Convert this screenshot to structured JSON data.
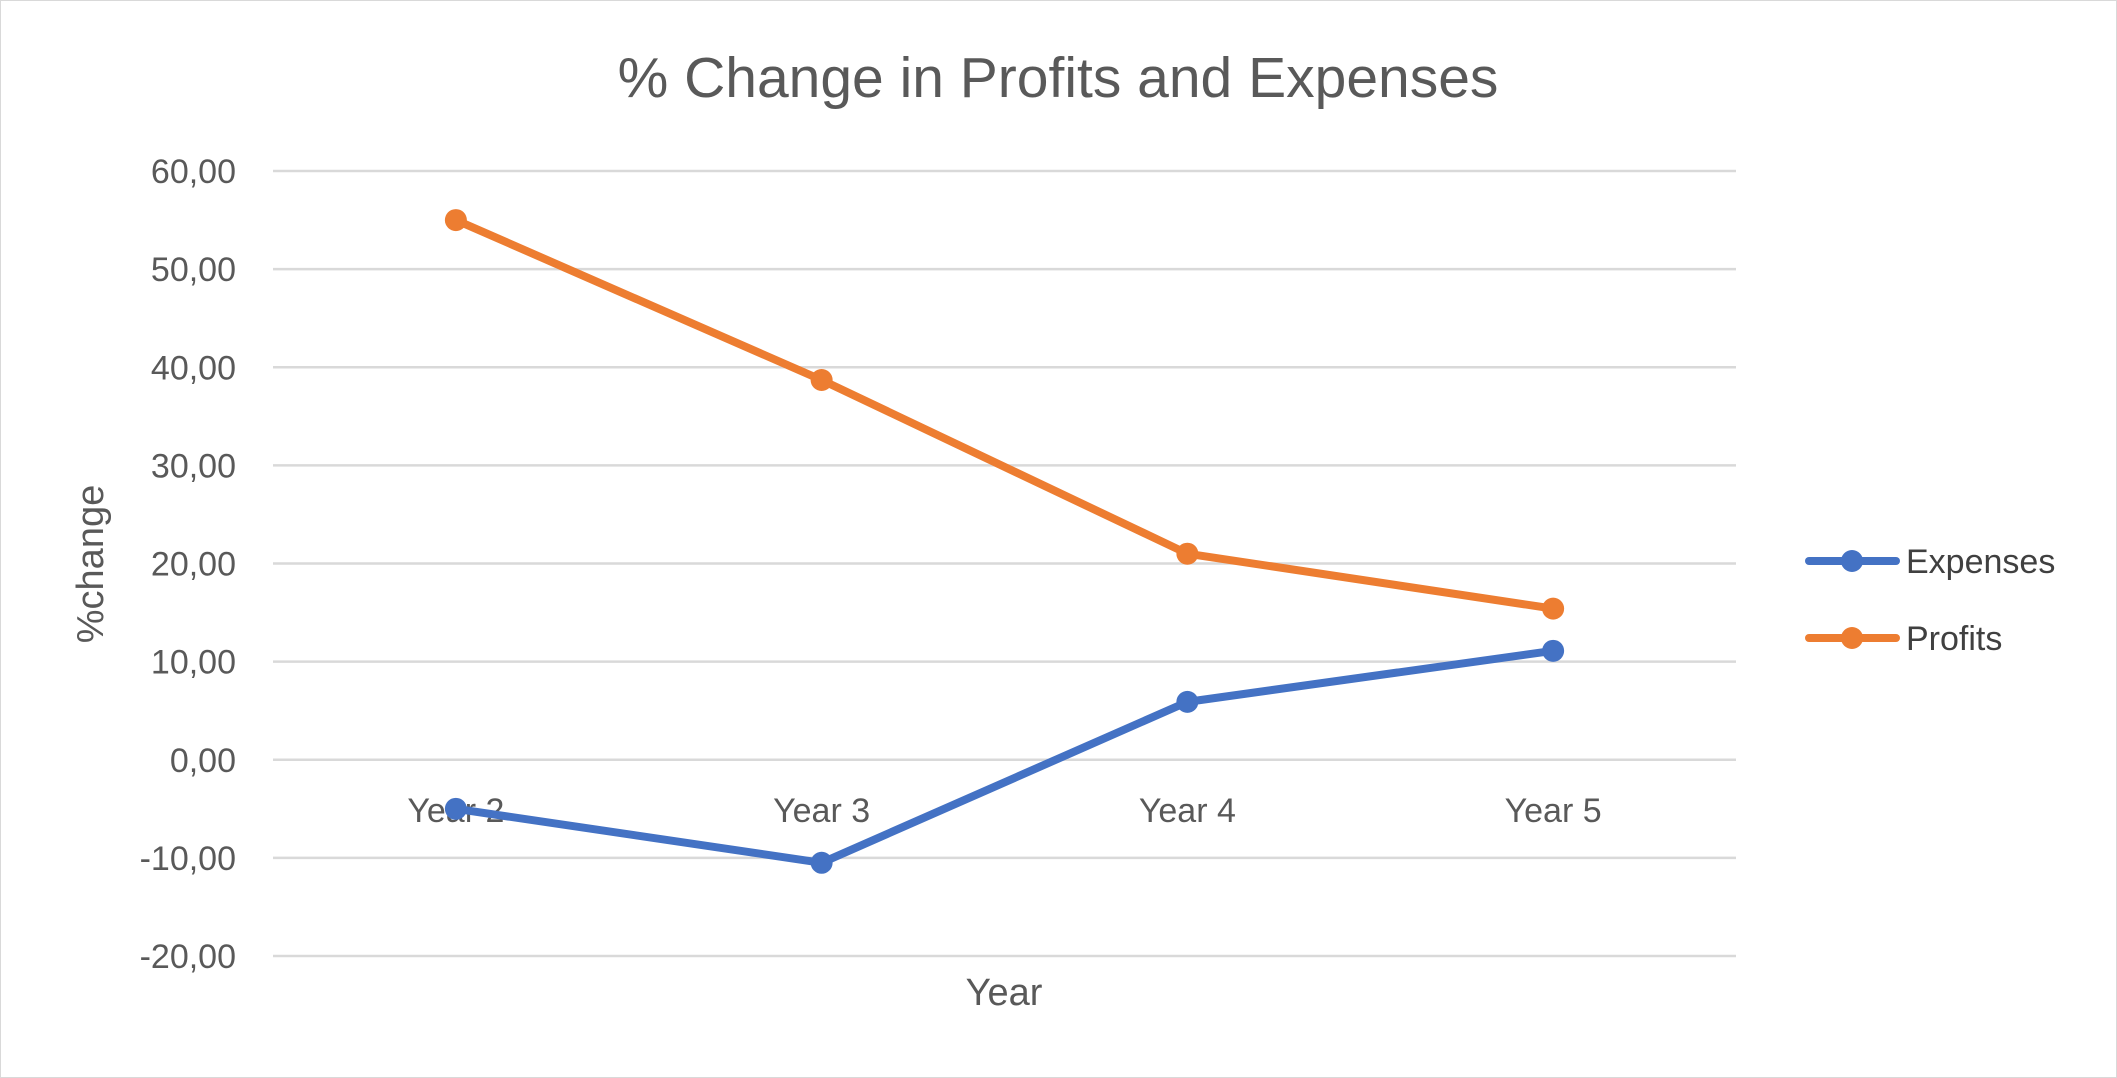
{
  "chart_data": {
    "type": "line",
    "title": "% Change in Profits and Expenses",
    "xlabel": "Year",
    "ylabel": "%change",
    "categories": [
      "Year 2",
      "Year 3",
      "Year 4",
      "Year 5"
    ],
    "ylim": [
      -20,
      60
    ],
    "y_ticks": [
      "60,00",
      "50,00",
      "40,00",
      "30,00",
      "20,00",
      "10,00",
      "0,00",
      "-10,00",
      "-20,00"
    ],
    "grid": true,
    "legend_position": "right",
    "series": [
      {
        "name": "Expenses",
        "color": "#4472c4",
        "values": [
          -5.0,
          -10.5,
          5.9,
          11.1
        ]
      },
      {
        "name": "Profits",
        "color": "#ed7d31",
        "values": [
          55.0,
          38.7,
          21.0,
          15.4
        ]
      }
    ]
  }
}
